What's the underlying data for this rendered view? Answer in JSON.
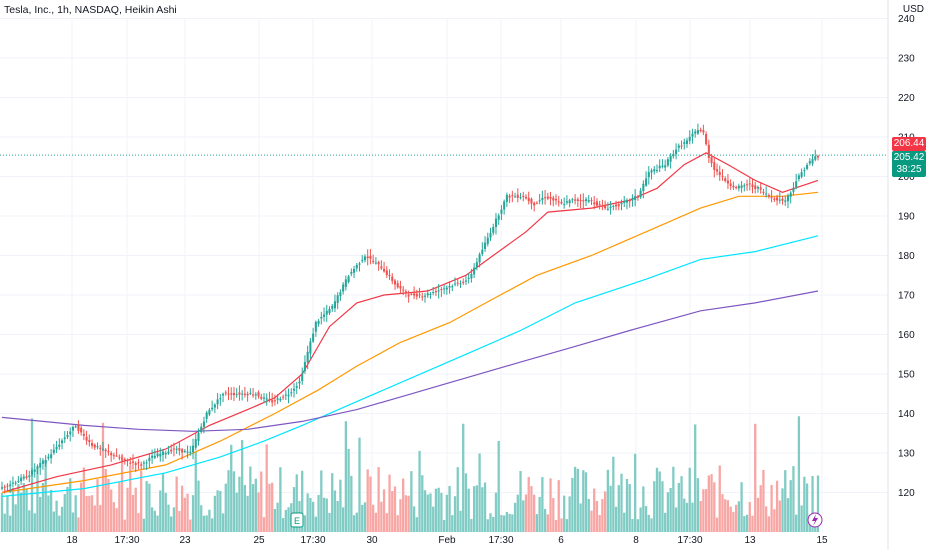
{
  "header": {
    "title": "Tesla, Inc., 1h, NASDAQ, Heikin Ashi",
    "currency": "USD"
  },
  "badges": {
    "last_price": "206.44",
    "current_price": "205.42",
    "countdown": "38:25"
  },
  "colors": {
    "up": "#26a69a",
    "down": "#ef5350",
    "vol_up": "#80cbc4",
    "vol_down": "#f7a6a4",
    "ma_red": "#f23645",
    "ma_orange": "#ff9800",
    "ma_cyan": "#00e5ff",
    "ma_purple": "#7e57c2",
    "grid": "#f0f3fa",
    "price_line": "#26a69a"
  },
  "chart_data": {
    "type": "candlestick",
    "title": "Tesla, Inc., 1h, NASDAQ, Heikin Ashi",
    "y_axis_ticks": [
      240,
      230,
      220,
      210,
      200,
      190,
      180,
      170,
      160,
      150,
      140,
      130,
      120
    ],
    "ylim": [
      108,
      245
    ],
    "x_axis_labels": [
      "18",
      "17:30",
      "23",
      "25",
      "17:30",
      "30",
      "Feb",
      "17:30",
      "6",
      "8",
      "17:30",
      "13",
      "15"
    ],
    "grid": true,
    "candle_anchors": [
      [
        0,
        121
      ],
      [
        10,
        124
      ],
      [
        18,
        129
      ],
      [
        24,
        134
      ],
      [
        28,
        137
      ],
      [
        30,
        135
      ],
      [
        34,
        132
      ],
      [
        40,
        130
      ],
      [
        46,
        128
      ],
      [
        52,
        127
      ],
      [
        56,
        129
      ],
      [
        64,
        131
      ],
      [
        70,
        130
      ],
      [
        76,
        140
      ],
      [
        82,
        145
      ],
      [
        88,
        145
      ],
      [
        94,
        145
      ],
      [
        96,
        144
      ],
      [
        100,
        143
      ],
      [
        106,
        145
      ],
      [
        110,
        148
      ],
      [
        116,
        163
      ],
      [
        122,
        167
      ],
      [
        128,
        175
      ],
      [
        134,
        180
      ],
      [
        140,
        177
      ],
      [
        146,
        172
      ],
      [
        150,
        170
      ],
      [
        156,
        170
      ],
      [
        164,
        172
      ],
      [
        172,
        174
      ],
      [
        176,
        180
      ],
      [
        180,
        186
      ],
      [
        186,
        195
      ],
      [
        192,
        195
      ],
      [
        196,
        193
      ],
      [
        200,
        195
      ],
      [
        206,
        193
      ],
      [
        210,
        194
      ],
      [
        216,
        194
      ],
      [
        222,
        192
      ],
      [
        228,
        193
      ],
      [
        234,
        195
      ],
      [
        238,
        201
      ],
      [
        244,
        203
      ],
      [
        248,
        207
      ],
      [
        252,
        209
      ],
      [
        256,
        212
      ],
      [
        258,
        211
      ],
      [
        260,
        205
      ],
      [
        262,
        202
      ],
      [
        266,
        199
      ],
      [
        270,
        197
      ],
      [
        274,
        198
      ],
      [
        278,
        197
      ],
      [
        282,
        195
      ],
      [
        286,
        194
      ],
      [
        288,
        194
      ],
      [
        290,
        196
      ],
      [
        292,
        199
      ],
      [
        296,
        203
      ],
      [
        299,
        205
      ]
    ],
    "series": [
      {
        "name": "",
        "color": "#f23645",
        "points": [
          [
            0,
            120
          ],
          [
            20,
            124
          ],
          [
            40,
            127
          ],
          [
            60,
            131
          ],
          [
            76,
            137
          ],
          [
            90,
            141
          ],
          [
            100,
            144
          ],
          [
            110,
            150
          ],
          [
            120,
            162
          ],
          [
            130,
            168
          ],
          [
            140,
            170
          ],
          [
            156,
            171
          ],
          [
            170,
            175
          ],
          [
            180,
            180
          ],
          [
            192,
            186
          ],
          [
            200,
            191
          ],
          [
            216,
            192
          ],
          [
            230,
            194
          ],
          [
            240,
            197
          ],
          [
            250,
            203
          ],
          [
            258,
            206
          ],
          [
            266,
            203
          ],
          [
            276,
            199
          ],
          [
            286,
            196
          ],
          [
            299,
            199
          ]
        ]
      },
      {
        "name": "",
        "color": "#ff9800",
        "points": [
          [
            0,
            120
          ],
          [
            30,
            123
          ],
          [
            60,
            127
          ],
          [
            80,
            133
          ],
          [
            100,
            140
          ],
          [
            116,
            146
          ],
          [
            130,
            152
          ],
          [
            146,
            158
          ],
          [
            164,
            163
          ],
          [
            180,
            169
          ],
          [
            196,
            175
          ],
          [
            216,
            180
          ],
          [
            236,
            186
          ],
          [
            256,
            192
          ],
          [
            270,
            195
          ],
          [
            286,
            195
          ],
          [
            299,
            196
          ]
        ]
      },
      {
        "name": "",
        "color": "#00e5ff",
        "points": [
          [
            0,
            119
          ],
          [
            30,
            121
          ],
          [
            60,
            125
          ],
          [
            80,
            129
          ],
          [
            96,
            133
          ],
          [
            110,
            137
          ],
          [
            130,
            143
          ],
          [
            150,
            149
          ],
          [
            170,
            155
          ],
          [
            190,
            161
          ],
          [
            210,
            168
          ],
          [
            236,
            174
          ],
          [
            256,
            179
          ],
          [
            276,
            181
          ],
          [
            299,
            185
          ]
        ]
      },
      {
        "name": "",
        "color": "#7e57c2",
        "points": [
          [
            0,
            139
          ],
          [
            30,
            137
          ],
          [
            50,
            136
          ],
          [
            70,
            135.5
          ],
          [
            90,
            136
          ],
          [
            110,
            138
          ],
          [
            130,
            141
          ],
          [
            150,
            145
          ],
          [
            170,
            149
          ],
          [
            190,
            153
          ],
          [
            210,
            157
          ],
          [
            230,
            161
          ],
          [
            256,
            166
          ],
          [
            276,
            168
          ],
          [
            299,
            171
          ]
        ]
      }
    ]
  }
}
